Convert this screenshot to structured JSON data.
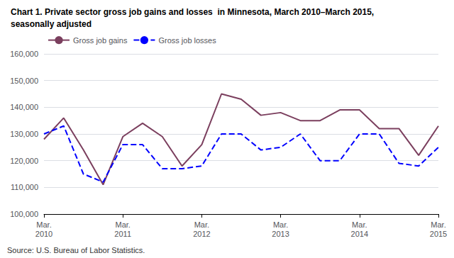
{
  "chart_data": {
    "type": "line",
    "title": "Chart 1. Private sector gross job gains and losses  in Minnesota, March 2010–March 2015,",
    "subtitle": "seasonally adjusted",
    "annotations": [
      "Source: U.S. Bureau of Labor Statistics."
    ],
    "categories": [
      "Mar.\n2010",
      null,
      null,
      null,
      "Mar.\n2011",
      null,
      null,
      null,
      "Mar.\n2012",
      null,
      null,
      null,
      "Mar.\n2013",
      null,
      null,
      null,
      "Mar.\n2014",
      null,
      null,
      null,
      "Mar.\n2015"
    ],
    "series": [
      {
        "name": "Gross job gains",
        "color": "#7b3f5e",
        "line_style": "solid",
        "values": [
          128000,
          136000,
          124000,
          111000,
          129000,
          134000,
          129000,
          118000,
          126000,
          145000,
          143000,
          137000,
          138000,
          135000,
          135000,
          139000,
          139000,
          132000,
          132000,
          122000,
          133000
        ]
      },
      {
        "name": "Gross job losses",
        "color": "#0000ff",
        "line_style": "dashed",
        "values": [
          130000,
          133000,
          115000,
          112000,
          126000,
          126000,
          117000,
          117000,
          118000,
          130000,
          130000,
          124000,
          125000,
          130000,
          120000,
          120000,
          130000,
          130000,
          119000,
          118000,
          125000
        ]
      }
    ],
    "ylim": [
      100000,
      160000
    ],
    "yticks": [
      {
        "value": 100000,
        "label": "100,000"
      },
      {
        "value": 110000,
        "label": "110,000"
      },
      {
        "value": 120000,
        "label": "120,000"
      },
      {
        "value": 130000,
        "label": "130,000"
      },
      {
        "value": 140000,
        "label": "140,000"
      },
      {
        "value": 150000,
        "label": "150,000"
      },
      {
        "value": 160000,
        "label": "160,000"
      }
    ],
    "grid": true,
    "legend": "upper left"
  }
}
